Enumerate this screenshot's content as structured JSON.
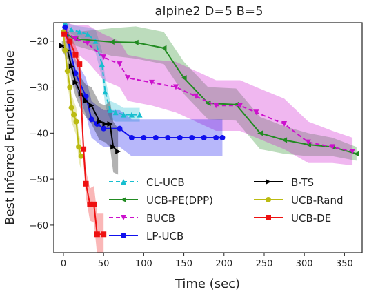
{
  "chart_data": {
    "type": "line",
    "title": "alpine2 D=5 B=5",
    "xlabel": "Time (sec)",
    "ylabel": "Best Inferred Function Value",
    "xlim": [
      -12,
      372
    ],
    "ylim": [
      -66,
      -16
    ],
    "xticks": [
      0,
      50,
      100,
      150,
      200,
      250,
      300,
      350
    ],
    "yticks": [
      -20,
      -30,
      -40,
      -50,
      -60
    ],
    "grid": false,
    "legend_placement": "lower-center",
    "series": [
      {
        "name": "CL-UCB",
        "color": "#17becf",
        "linestyle": "dashed",
        "marker": "triangle-up",
        "x": [
          2,
          10,
          20,
          30,
          40,
          48,
          52,
          58,
          65,
          75,
          85,
          95
        ],
        "y": [
          -16,
          -17.5,
          -18,
          -18.5,
          -20,
          -25,
          -31,
          -35,
          -35.5,
          -36,
          -36,
          -36
        ],
        "band_halfwidth": [
          0.5,
          1,
          1.2,
          1.5,
          2.5,
          3,
          3,
          2,
          2,
          1.5,
          1.5,
          1.5
        ]
      },
      {
        "name": "UCB-PE(DPP)",
        "color": "#228b22",
        "linestyle": "solid",
        "marker": "triangle-left",
        "x": [
          3,
          15,
          60,
          90,
          125,
          150,
          180,
          215,
          245,
          275,
          305,
          335,
          365
        ],
        "y": [
          -18.5,
          -19.5,
          -20.2,
          -20.3,
          -21.5,
          -28,
          -33.5,
          -33.8,
          -40,
          -41.5,
          -42.5,
          -43,
          -44.5
        ],
        "band_halfwidth": [
          1,
          1.5,
          3,
          3.5,
          3.5,
          3.5,
          3.5,
          3.5,
          3.5,
          3,
          2.5,
          2,
          1.5
        ]
      },
      {
        "name": "BUCB",
        "color": "#cc11cc",
        "linestyle": "dashed",
        "marker": "triangle-down",
        "x": [
          2,
          15,
          30,
          50,
          70,
          80,
          110,
          140,
          165,
          190,
          220,
          240,
          275,
          305,
          335,
          360
        ],
        "y": [
          -18,
          -19.5,
          -20.5,
          -23.5,
          -25,
          -28,
          -29,
          -30,
          -32,
          -34,
          -34,
          -35.5,
          -38,
          -42,
          -43,
          -44
        ],
        "band_halfwidth": [
          2,
          3,
          4,
          5,
          5,
          5,
          5,
          5.5,
          5.5,
          5.5,
          5.5,
          5.5,
          5.5,
          4.5,
          3.5,
          3
        ]
      },
      {
        "name": "LP-UCB",
        "color": "#1111ee",
        "linestyle": "solid",
        "marker": "circle",
        "x": [
          2,
          15,
          28,
          35,
          42,
          50,
          70,
          85,
          100,
          115,
          130,
          145,
          160,
          175,
          190,
          198
        ],
        "y": [
          -17,
          -27,
          -32,
          -37,
          -38,
          -39,
          -39,
          -41,
          -41,
          -41,
          -41,
          -41,
          -41,
          -41,
          -41,
          -41
        ],
        "band_halfwidth": [
          1,
          3,
          4,
          4,
          4,
          4,
          4,
          4,
          4,
          4,
          4,
          4,
          4,
          4,
          4,
          4
        ]
      },
      {
        "name": "B-TS",
        "color": "#000000",
        "linestyle": "solid",
        "marker": "triangle-right",
        "x": [
          -2,
          5,
          10,
          15,
          22,
          28,
          35,
          45,
          52,
          58,
          62,
          68
        ],
        "y": [
          -21,
          -22,
          -25.5,
          -29,
          -31.5,
          -33,
          -34,
          -37.5,
          -38,
          -38,
          -43,
          -44
        ],
        "band_halfwidth": [
          1,
          2,
          3,
          3,
          3.5,
          3.5,
          4,
          4,
          4,
          5,
          5.5,
          5
        ]
      },
      {
        "name": "UCB-Rand",
        "color": "#bbbb11",
        "linestyle": "solid",
        "marker": "circle",
        "x": [
          0,
          2,
          5,
          8,
          10,
          13,
          16,
          19,
          22
        ],
        "y": [
          -18,
          -22,
          -26.5,
          -30,
          -34.5,
          -36,
          -37.5,
          -43,
          -45
        ],
        "band_halfwidth": [
          1,
          2,
          3,
          3,
          3,
          3,
          3,
          3,
          3
        ]
      },
      {
        "name": "UCB-DE",
        "color": "#ee1111",
        "linestyle": "solid",
        "marker": "square",
        "x": [
          1,
          8,
          15,
          20,
          25,
          28,
          33,
          38,
          42,
          50
        ],
        "y": [
          -18.5,
          -20,
          -23,
          -25,
          -43.5,
          -51,
          -55.5,
          -55.5,
          -62,
          -62
        ],
        "band_halfwidth": [
          1,
          1.5,
          2,
          2,
          3,
          3,
          3.5,
          4,
          4.5,
          4.5
        ]
      }
    ]
  }
}
